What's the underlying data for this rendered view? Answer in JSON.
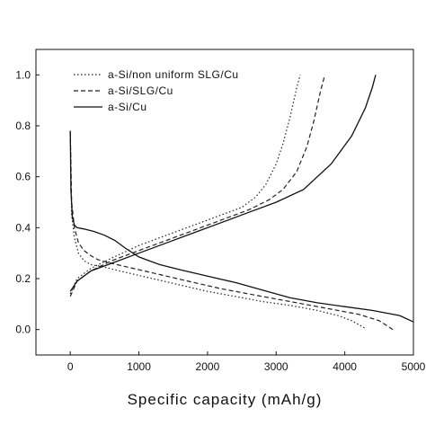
{
  "chart_data": {
    "type": "line",
    "title": "",
    "xlabel": "Specific capacity (mAh/g)",
    "ylabel": "",
    "xlim": [
      -500,
      5000
    ],
    "ylim": [
      -0.1,
      1.1
    ],
    "xticks": [
      0,
      1000,
      2000,
      3000,
      4000,
      5000
    ],
    "yticks": [
      0.0,
      0.2,
      0.4,
      0.6,
      0.8,
      1.0
    ],
    "xtick_labels": [
      "0",
      "1000",
      "2000",
      "3000",
      "4000",
      "5000"
    ],
    "ytick_labels": [
      "0.0",
      "0.2",
      "0.4",
      "0.6",
      "0.8",
      "1.0"
    ],
    "grid": false,
    "legend_position": "top-left",
    "series": [
      {
        "name": "a-Si/non uniform SLG/Cu",
        "style": "dotted",
        "color": "#222222",
        "segments": [
          {
            "x": [
              0,
              20,
              60,
              120,
              200,
              300,
              500,
              800,
              1200,
              1600,
              2000,
              2400,
              2800,
              3200,
              3600,
              3900,
              4100,
              4300
            ],
            "y": [
              0.78,
              0.45,
              0.36,
              0.3,
              0.27,
              0.255,
              0.245,
              0.225,
              0.2,
              0.175,
              0.15,
              0.13,
              0.11,
              0.095,
              0.075,
              0.055,
              0.035,
              0.005
            ]
          },
          {
            "x": [
              0,
              100,
              300,
              600,
              1000,
              1400,
              1800,
              2200,
              2500,
              2700,
              2850,
              3000,
              3100,
              3200,
              3300,
              3350
            ],
            "y": [
              0.14,
              0.2,
              0.24,
              0.28,
              0.33,
              0.37,
              0.41,
              0.45,
              0.48,
              0.52,
              0.57,
              0.65,
              0.73,
              0.83,
              0.95,
              1.0
            ]
          }
        ]
      },
      {
        "name": "a-Si/SLG/Cu",
        "style": "dashed",
        "color": "#222222",
        "segments": [
          {
            "x": [
              0,
              20,
              60,
              120,
              200,
              300,
              400,
              600,
              1000,
              1400,
              1800,
              2200,
              2600,
              3000,
              3400,
              3800,
              4200,
              4500,
              4700
            ],
            "y": [
              0.78,
              0.5,
              0.4,
              0.34,
              0.31,
              0.29,
              0.275,
              0.26,
              0.235,
              0.21,
              0.185,
              0.16,
              0.14,
              0.12,
              0.1,
              0.08,
              0.06,
              0.035,
              0.0
            ]
          },
          {
            "x": [
              0,
              100,
              300,
              600,
              1000,
              1400,
              1800,
              2200,
              2600,
              2900,
              3100,
              3300,
              3450,
              3550,
              3650,
              3700
            ],
            "y": [
              0.13,
              0.19,
              0.23,
              0.27,
              0.31,
              0.35,
              0.39,
              0.43,
              0.47,
              0.51,
              0.55,
              0.62,
              0.72,
              0.82,
              0.94,
              0.99
            ]
          }
        ]
      },
      {
        "name": "a-Si/Cu",
        "style": "solid",
        "color": "#111111",
        "segments": [
          {
            "x": [
              0,
              10,
              30,
              60,
              100,
              200,
              350,
              500,
              650,
              800,
              1000,
              1300,
              1600,
              2000,
              2400,
              2800,
              3200,
              3600,
              4000,
              4400,
              4800,
              5000
            ],
            "y": [
              0.78,
              0.55,
              0.44,
              0.41,
              0.4,
              0.395,
              0.385,
              0.37,
              0.35,
              0.32,
              0.285,
              0.255,
              0.235,
              0.21,
              0.185,
              0.155,
              0.125,
              0.105,
              0.09,
              0.075,
              0.055,
              0.03
            ]
          },
          {
            "x": [
              0,
              100,
              300,
              600,
              1000,
              1400,
              1800,
              2200,
              2600,
              3000,
              3400,
              3800,
              4100,
              4300,
              4400,
              4450
            ],
            "y": [
              0.15,
              0.19,
              0.23,
              0.26,
              0.3,
              0.34,
              0.38,
              0.42,
              0.46,
              0.5,
              0.55,
              0.65,
              0.76,
              0.87,
              0.95,
              1.0
            ]
          }
        ]
      }
    ]
  }
}
